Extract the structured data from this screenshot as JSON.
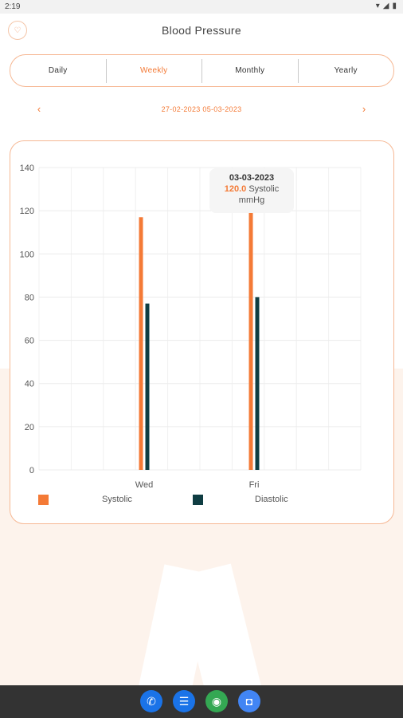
{
  "status_bar": {
    "time": "2:19",
    "icons": [
      "wifi-icon",
      "signal-icon",
      "battery-icon"
    ]
  },
  "header": {
    "title": "Blood Pressure",
    "logo_icon": "heart-pulse-icon"
  },
  "tabs": [
    {
      "label": "Daily",
      "active": false
    },
    {
      "label": "Weekly",
      "active": true
    },
    {
      "label": "Monthly",
      "active": false
    },
    {
      "label": "Yearly",
      "active": false
    }
  ],
  "date_nav": {
    "prev_icon": "chevron-left-icon",
    "next_icon": "chevron-right-icon",
    "range": "27-02-2023 05-03-2023"
  },
  "tooltip": {
    "date": "03-03-2023",
    "value": "120.0",
    "series": "Systolic",
    "unit": "mmHg"
  },
  "colors": {
    "accent": "#f47a36",
    "systolic": "#f47a36",
    "diastolic": "#0f3d42"
  },
  "chart_data": {
    "type": "bar",
    "categories": [
      "Wed",
      "Fri"
    ],
    "series": [
      {
        "name": "Systolic",
        "values": [
          117,
          120
        ]
      },
      {
        "name": "Diastolic",
        "values": [
          77,
          80
        ]
      }
    ],
    "ylim": [
      0,
      140
    ],
    "yticks": [
      0,
      20,
      40,
      60,
      80,
      100,
      120,
      140
    ],
    "grid": true,
    "legend_position": "bottom"
  },
  "dock": [
    {
      "name": "phone-icon",
      "glyph": "✆",
      "color": "#1a73e8"
    },
    {
      "name": "messages-icon",
      "glyph": "☰",
      "color": "#1a73e8"
    },
    {
      "name": "chrome-icon",
      "glyph": "◉",
      "color": "#34a853"
    },
    {
      "name": "camera-icon",
      "glyph": "◘",
      "color": "#4285f4"
    }
  ]
}
